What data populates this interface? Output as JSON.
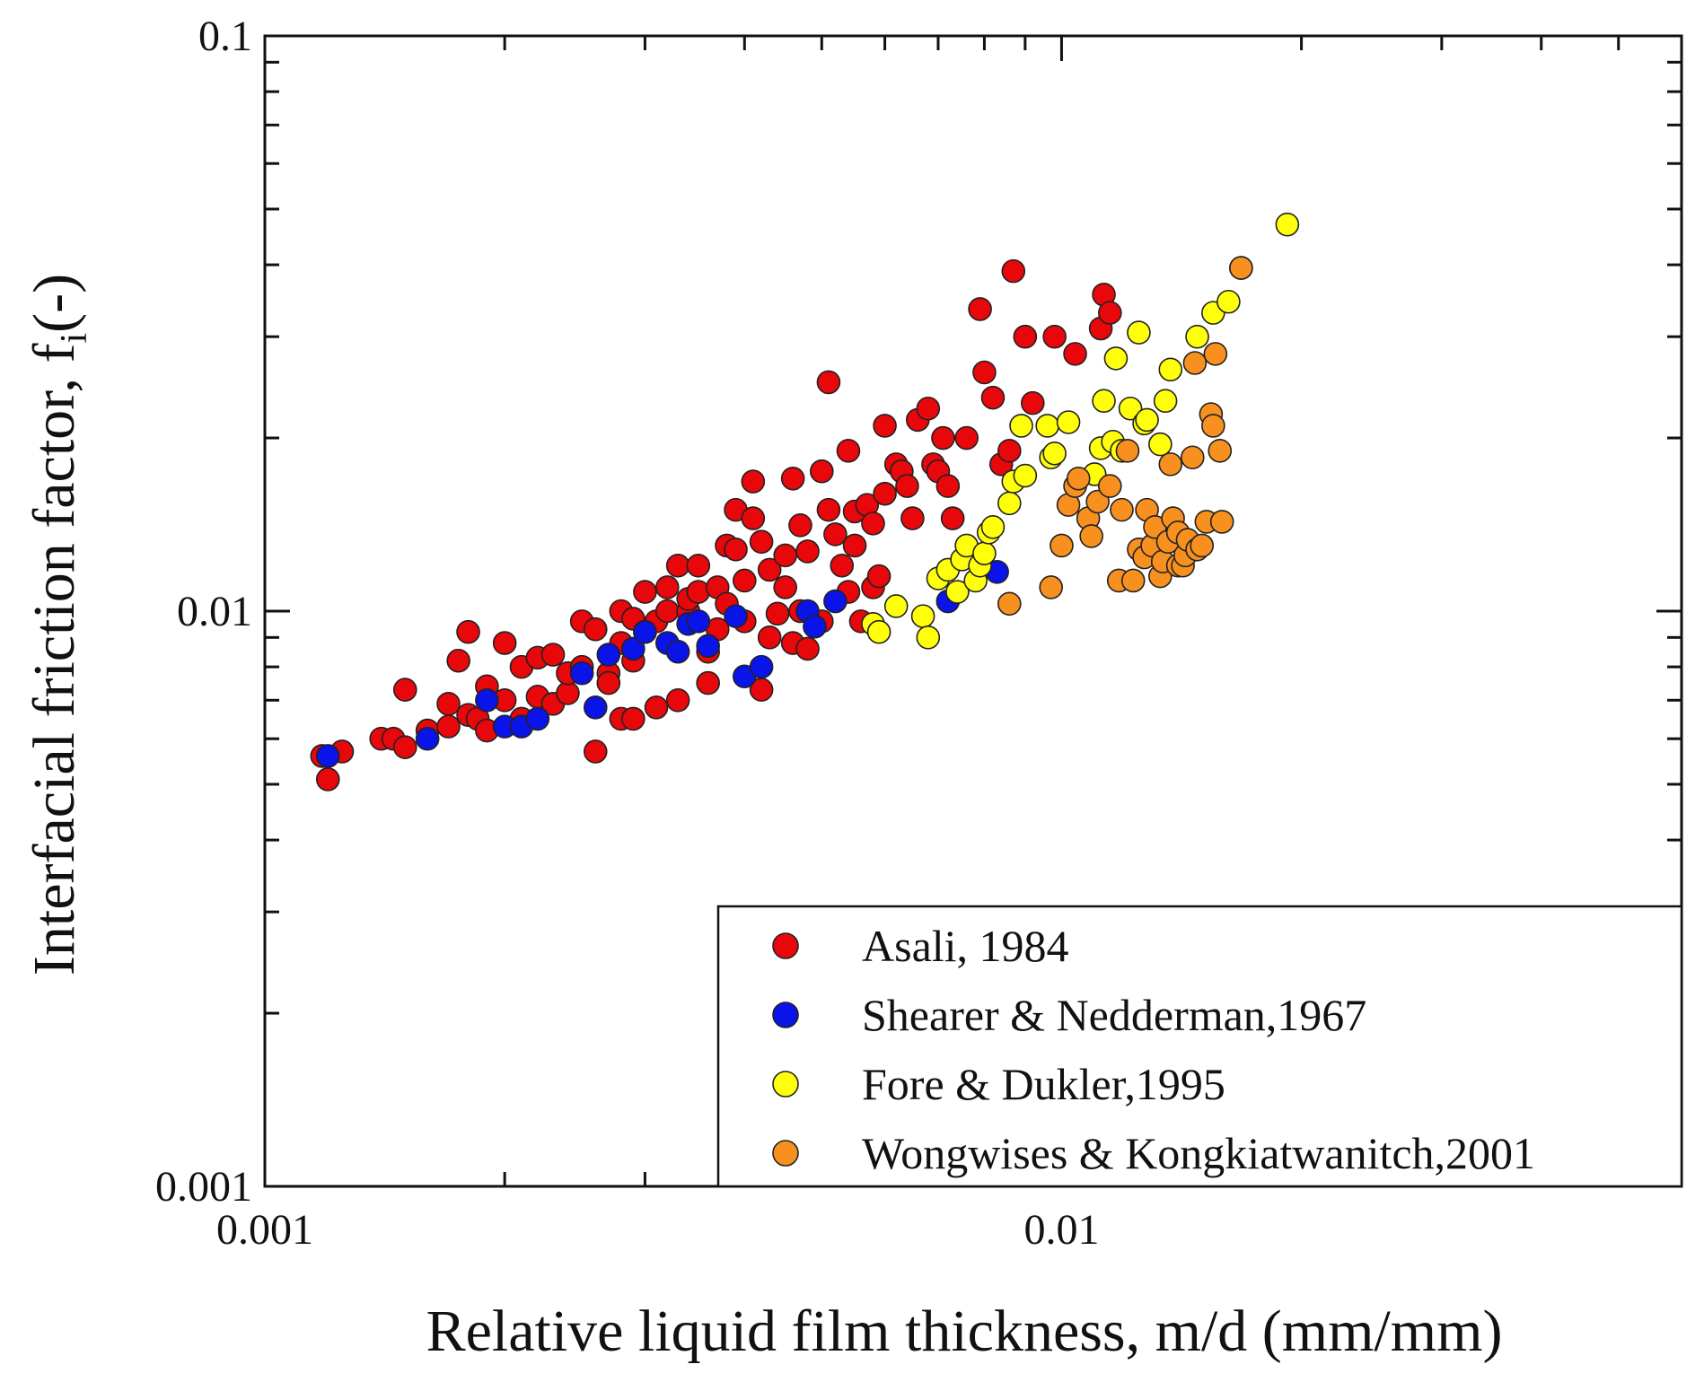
{
  "chart_data": {
    "type": "scatter",
    "scale": {
      "x": "log",
      "y": "log"
    },
    "title": "",
    "xlabel": "Relative liquid film thickness, m/d (mm/mm)",
    "ylabel_main": "Interfacial friction factor, f",
    "ylabel_sub": "i",
    "ylabel_suffix": "(-)",
    "xlim": [
      0.001,
      0.06
    ],
    "ylim": [
      0.001,
      0.1
    ],
    "x_ticks": [
      {
        "value": 0.001,
        "label": "0.001"
      },
      {
        "value": 0.01,
        "label": "0.01"
      }
    ],
    "y_ticks": [
      {
        "value": 0.001,
        "label": "0.001"
      },
      {
        "value": 0.01,
        "label": "0.01"
      },
      {
        "value": 0.1,
        "label": "0.1"
      }
    ],
    "legend_position": "bottom-right",
    "series": [
      {
        "name": "Asali, 1984",
        "color": "#e8070a",
        "points": [
          [
            0.00118,
            0.0056
          ],
          [
            0.0012,
            0.0051
          ],
          [
            0.00125,
            0.0057
          ],
          [
            0.0014,
            0.006
          ],
          [
            0.00145,
            0.006
          ],
          [
            0.0015,
            0.0058
          ],
          [
            0.0015,
            0.0073
          ],
          [
            0.0016,
            0.0062
          ],
          [
            0.0017,
            0.0063
          ],
          [
            0.0017,
            0.0069
          ],
          [
            0.00175,
            0.0082
          ],
          [
            0.0018,
            0.0066
          ],
          [
            0.0018,
            0.0092
          ],
          [
            0.00185,
            0.0065
          ],
          [
            0.0019,
            0.0074
          ],
          [
            0.0019,
            0.0062
          ],
          [
            0.002,
            0.007
          ],
          [
            0.002,
            0.0088
          ],
          [
            0.0021,
            0.008
          ],
          [
            0.0021,
            0.0065
          ],
          [
            0.0022,
            0.0083
          ],
          [
            0.0022,
            0.0071
          ],
          [
            0.0023,
            0.0069
          ],
          [
            0.0023,
            0.0084
          ],
          [
            0.0024,
            0.0072
          ],
          [
            0.0024,
            0.0078
          ],
          [
            0.0025,
            0.0096
          ],
          [
            0.0025,
            0.008
          ],
          [
            0.0026,
            0.0057
          ],
          [
            0.0026,
            0.0093
          ],
          [
            0.0027,
            0.0078
          ],
          [
            0.0027,
            0.0075
          ],
          [
            0.0028,
            0.0088
          ],
          [
            0.0028,
            0.01
          ],
          [
            0.0028,
            0.0065
          ],
          [
            0.0029,
            0.0082
          ],
          [
            0.0029,
            0.0097
          ],
          [
            0.0029,
            0.0065
          ],
          [
            0.003,
            0.0108
          ],
          [
            0.003,
            0.0092
          ],
          [
            0.0031,
            0.0068
          ],
          [
            0.0031,
            0.0096
          ],
          [
            0.0032,
            0.011
          ],
          [
            0.0032,
            0.01
          ],
          [
            0.0033,
            0.007
          ],
          [
            0.0033,
            0.012
          ],
          [
            0.0034,
            0.01
          ],
          [
            0.0034,
            0.0105
          ],
          [
            0.0035,
            0.012
          ],
          [
            0.0035,
            0.0108
          ],
          [
            0.0036,
            0.0075
          ],
          [
            0.0036,
            0.0085
          ],
          [
            0.0037,
            0.011
          ],
          [
            0.0037,
            0.0093
          ],
          [
            0.0038,
            0.013
          ],
          [
            0.0038,
            0.0103
          ],
          [
            0.0039,
            0.0128
          ],
          [
            0.0039,
            0.015
          ],
          [
            0.004,
            0.0113
          ],
          [
            0.004,
            0.0096
          ],
          [
            0.0041,
            0.0168
          ],
          [
            0.0041,
            0.0145
          ],
          [
            0.0042,
            0.0073
          ],
          [
            0.0042,
            0.0132
          ],
          [
            0.0043,
            0.009
          ],
          [
            0.0043,
            0.0118
          ],
          [
            0.0044,
            0.0099
          ],
          [
            0.0045,
            0.011
          ],
          [
            0.0045,
            0.0125
          ],
          [
            0.0046,
            0.0088
          ],
          [
            0.0046,
            0.017
          ],
          [
            0.0047,
            0.0141
          ],
          [
            0.0047,
            0.01
          ],
          [
            0.0048,
            0.0127
          ],
          [
            0.0048,
            0.0086
          ],
          [
            0.0049,
            0.0094
          ],
          [
            0.005,
            0.0175
          ],
          [
            0.005,
            0.0096
          ],
          [
            0.0051,
            0.025
          ],
          [
            0.0051,
            0.015
          ],
          [
            0.0052,
            0.0136
          ],
          [
            0.0053,
            0.012
          ],
          [
            0.0054,
            0.0108
          ],
          [
            0.0054,
            0.019
          ],
          [
            0.0055,
            0.0149
          ],
          [
            0.0055,
            0.013
          ],
          [
            0.0056,
            0.0096
          ],
          [
            0.0057,
            0.0153
          ],
          [
            0.0058,
            0.0142
          ],
          [
            0.0058,
            0.011
          ],
          [
            0.0059,
            0.0115
          ],
          [
            0.006,
            0.016
          ],
          [
            0.006,
            0.021
          ],
          [
            0.0062,
            0.018
          ],
          [
            0.0063,
            0.0175
          ],
          [
            0.0064,
            0.0165
          ],
          [
            0.0065,
            0.0145
          ],
          [
            0.0066,
            0.0215
          ],
          [
            0.0068,
            0.0225
          ],
          [
            0.0069,
            0.018
          ],
          [
            0.007,
            0.0175
          ],
          [
            0.0071,
            0.02
          ],
          [
            0.0072,
            0.0165
          ],
          [
            0.0073,
            0.0145
          ],
          [
            0.0076,
            0.02
          ],
          [
            0.0079,
            0.0335
          ],
          [
            0.008,
            0.026
          ],
          [
            0.0082,
            0.0235
          ],
          [
            0.0084,
            0.018
          ],
          [
            0.0086,
            0.019
          ],
          [
            0.0087,
            0.039
          ],
          [
            0.009,
            0.03
          ],
          [
            0.0092,
            0.023
          ],
          [
            0.0098,
            0.03
          ],
          [
            0.0104,
            0.028
          ],
          [
            0.0112,
            0.031
          ],
          [
            0.0113,
            0.0355
          ],
          [
            0.0115,
            0.033
          ]
        ]
      },
      {
        "name": "Shearer & Nedderman,1967",
        "color": "#0a14e8",
        "points": [
          [
            0.0012,
            0.0056
          ],
          [
            0.0016,
            0.006
          ],
          [
            0.0019,
            0.007
          ],
          [
            0.002,
            0.0063
          ],
          [
            0.0021,
            0.0063
          ],
          [
            0.0022,
            0.0065
          ],
          [
            0.0025,
            0.0078
          ],
          [
            0.0026,
            0.0068
          ],
          [
            0.0027,
            0.0084
          ],
          [
            0.0029,
            0.0086
          ],
          [
            0.003,
            0.0092
          ],
          [
            0.0032,
            0.0088
          ],
          [
            0.0033,
            0.0085
          ],
          [
            0.0034,
            0.0095
          ],
          [
            0.0035,
            0.0096
          ],
          [
            0.0036,
            0.0087
          ],
          [
            0.0039,
            0.0098
          ],
          [
            0.004,
            0.0077
          ],
          [
            0.0042,
            0.008
          ],
          [
            0.0048,
            0.01
          ],
          [
            0.0049,
            0.0094
          ],
          [
            0.0052,
            0.0104
          ],
          [
            0.0072,
            0.0104
          ],
          [
            0.0083,
            0.0117
          ]
        ]
      },
      {
        "name": "Fore & Dukler,1995",
        "color": "#ffff0a",
        "points": [
          [
            0.0058,
            0.0095
          ],
          [
            0.0059,
            0.0092
          ],
          [
            0.0062,
            0.0102
          ],
          [
            0.0067,
            0.0098
          ],
          [
            0.0068,
            0.009
          ],
          [
            0.007,
            0.0114
          ],
          [
            0.0072,
            0.0118
          ],
          [
            0.0074,
            0.0108
          ],
          [
            0.0075,
            0.0123
          ],
          [
            0.0076,
            0.013
          ],
          [
            0.0078,
            0.0113
          ],
          [
            0.0079,
            0.012
          ],
          [
            0.008,
            0.0126
          ],
          [
            0.0081,
            0.0137
          ],
          [
            0.0082,
            0.014
          ],
          [
            0.0086,
            0.0154
          ],
          [
            0.0087,
            0.0168
          ],
          [
            0.009,
            0.0172
          ],
          [
            0.0089,
            0.021
          ],
          [
            0.0096,
            0.021
          ],
          [
            0.0097,
            0.0185
          ],
          [
            0.0098,
            0.0188
          ],
          [
            0.0102,
            0.0213
          ],
          [
            0.011,
            0.0173
          ],
          [
            0.0112,
            0.0192
          ],
          [
            0.0113,
            0.0232
          ],
          [
            0.0116,
            0.0197
          ],
          [
            0.0117,
            0.0275
          ],
          [
            0.0119,
            0.019
          ],
          [
            0.0122,
            0.0225
          ],
          [
            0.0125,
            0.0305
          ],
          [
            0.0127,
            0.0212
          ],
          [
            0.0128,
            0.0215
          ],
          [
            0.0133,
            0.0195
          ],
          [
            0.0135,
            0.0232
          ],
          [
            0.0137,
            0.0263
          ],
          [
            0.0148,
            0.03
          ],
          [
            0.0155,
            0.033
          ],
          [
            0.0162,
            0.0345
          ],
          [
            0.0168,
            0.0395
          ],
          [
            0.0192,
            0.047
          ]
        ]
      },
      {
        "name": "Wongwises & Kongkiatwanitch,2001",
        "color": "#f7901e",
        "points": [
          [
            0.0086,
            0.0103
          ],
          [
            0.0097,
            0.011
          ],
          [
            0.01,
            0.013
          ],
          [
            0.0102,
            0.0153
          ],
          [
            0.0104,
            0.0165
          ],
          [
            0.0105,
            0.017
          ],
          [
            0.0108,
            0.0145
          ],
          [
            0.0109,
            0.0135
          ],
          [
            0.0111,
            0.0155
          ],
          [
            0.0115,
            0.0165
          ],
          [
            0.0118,
            0.0113
          ],
          [
            0.0119,
            0.015
          ],
          [
            0.0121,
            0.019
          ],
          [
            0.0123,
            0.0113
          ],
          [
            0.0125,
            0.0128
          ],
          [
            0.0127,
            0.0124
          ],
          [
            0.0128,
            0.015
          ],
          [
            0.013,
            0.013
          ],
          [
            0.0131,
            0.014
          ],
          [
            0.0133,
            0.0115
          ],
          [
            0.0134,
            0.0122
          ],
          [
            0.0136,
            0.0132
          ],
          [
            0.0137,
            0.018
          ],
          [
            0.0138,
            0.0145
          ],
          [
            0.014,
            0.0137
          ],
          [
            0.014,
            0.012
          ],
          [
            0.0142,
            0.012
          ],
          [
            0.0143,
            0.0125
          ],
          [
            0.0144,
            0.0133
          ],
          [
            0.0146,
            0.0185
          ],
          [
            0.0147,
            0.027
          ],
          [
            0.0148,
            0.0128
          ],
          [
            0.015,
            0.013
          ],
          [
            0.0152,
            0.0143
          ],
          [
            0.0154,
            0.022
          ],
          [
            0.0155,
            0.021
          ],
          [
            0.0156,
            0.028
          ],
          [
            0.0158,
            0.019
          ],
          [
            0.0159,
            0.0143
          ],
          [
            0.0168,
            0.0395
          ]
        ]
      }
    ]
  }
}
